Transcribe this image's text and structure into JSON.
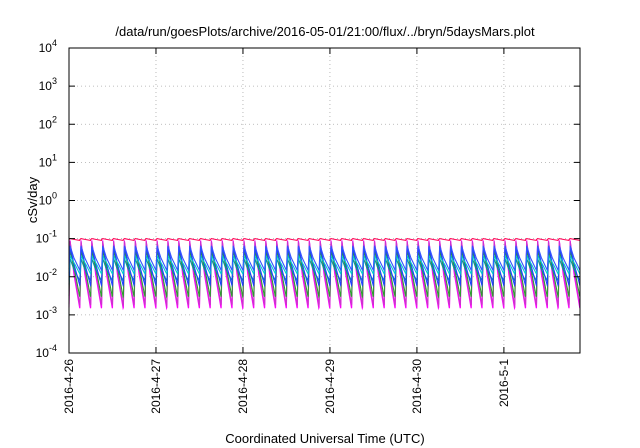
{
  "chart_data": {
    "type": "line",
    "title": "/data/run/goesPlots/archive/2016-05-01/21:00/flux/../bryn/5daysMars.plot",
    "xlabel": "Coordinated Universal Time (UTC)",
    "ylabel": "cSv/day",
    "yscale": "log",
    "ylim": [
      0.0001,
      10000
    ],
    "y_ticks": [
      {
        "base": "10",
        "exp": "-4"
      },
      {
        "base": "10",
        "exp": "-3"
      },
      {
        "base": "10",
        "exp": "-2"
      },
      {
        "base": "10",
        "exp": "-1"
      },
      {
        "base": "10",
        "exp": "0"
      },
      {
        "base": "10",
        "exp": "1"
      },
      {
        "base": "10",
        "exp": "2"
      },
      {
        "base": "10",
        "exp": "3"
      },
      {
        "base": "10",
        "exp": "4"
      }
    ],
    "xlim": [
      "2016-04-26 00:00",
      "2016-05-01 21:00"
    ],
    "x_ticks": [
      "2016-4-26",
      "2016-4-27",
      "2016-4-28",
      "2016-4-29",
      "2016-4-30",
      "2016-5-1"
    ],
    "grid": true,
    "legend": "none",
    "waveform": {
      "period_hours": 3,
      "shape": "sawtooth",
      "note": "each series rises sharply at the start of every 3-hour interval and decays over the interval"
    },
    "series": [
      {
        "color": "#ff00ff",
        "peak": 0.09,
        "trough": 0.0015
      },
      {
        "color": "#cc33cc",
        "peak": 0.085,
        "trough": 0.0018
      },
      {
        "color": "#2ca02c",
        "peak": 0.05,
        "trough": 0.003
      },
      {
        "color": "#009999",
        "peak": 0.03,
        "trough": 0.008
      },
      {
        "color": "#1f3fff",
        "peak": 0.06,
        "trough": 0.006
      },
      {
        "color": "#00cccc",
        "peak": 0.035,
        "trough": 0.012
      },
      {
        "color": "#3355ff",
        "peak": 0.065,
        "trough": 0.015
      },
      {
        "color": "#ff0055",
        "peak": 0.1,
        "trough": 0.09
      }
    ]
  }
}
